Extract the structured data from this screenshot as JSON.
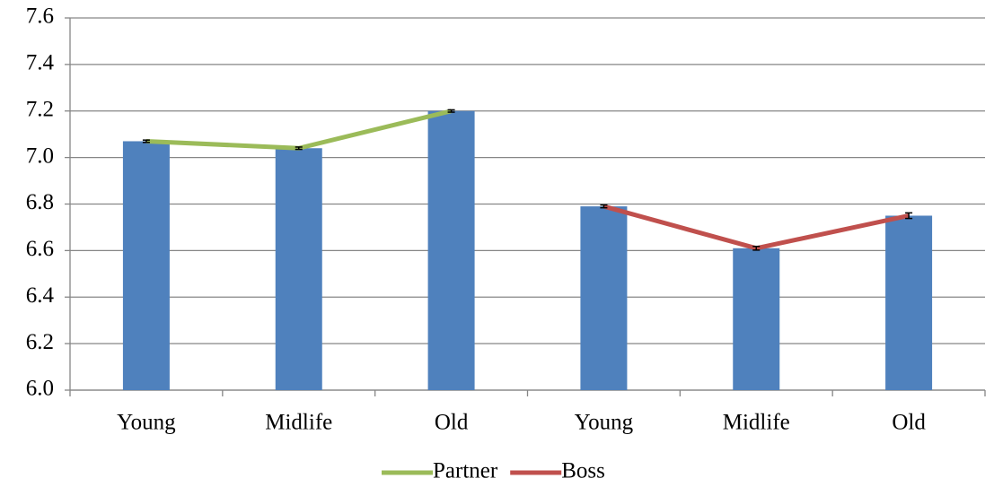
{
  "chart_data": {
    "type": "bar",
    "categories": [
      "Young",
      "Midlife",
      "Old",
      "Young",
      "Midlife",
      "Old"
    ],
    "values": [
      7.07,
      7.04,
      7.2,
      6.79,
      6.61,
      6.75
    ],
    "errors": [
      0.005,
      0.005,
      0.005,
      0.006,
      0.008,
      0.012
    ],
    "color": "#4f81bd",
    "series": [
      {
        "name": "Partner",
        "color": "#9bbb59",
        "values": [
          7.07,
          7.04,
          7.2,
          null,
          null,
          null
        ]
      },
      {
        "name": "Boss",
        "color": "#c0504d",
        "values": [
          null,
          null,
          null,
          6.79,
          6.61,
          6.75
        ]
      }
    ],
    "ylim": [
      6.0,
      7.6
    ],
    "yticks": [
      {
        "value": 6.0,
        "label": "6.0"
      },
      6.2,
      6.4,
      6.6,
      6.8,
      {
        "value": 7.0,
        "label": "7.0"
      },
      7.2,
      7.4,
      7.6
    ],
    "grid": true,
    "legend": "bottom"
  }
}
